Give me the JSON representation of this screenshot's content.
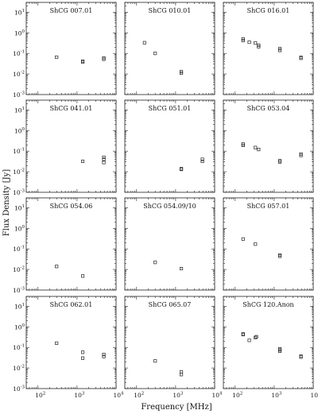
{
  "figure": {
    "ylabel": "Flux Density [Jy]",
    "xlabel": "Frequency [MHz]"
  },
  "chart_data": [
    {
      "type": "scatter",
      "title": "ShCG 007.01",
      "xscale": "log",
      "yscale": "log",
      "xlim": [
        50,
        10000
      ],
      "ylim": [
        0.001,
        30
      ],
      "x": [
        300,
        1400,
        1400,
        4850,
        4850
      ],
      "y": [
        0.065,
        0.042,
        0.038,
        0.06,
        0.052
      ]
    },
    {
      "type": "scatter",
      "title": "ShCG 010.01",
      "xscale": "log",
      "yscale": "log",
      "xlim": [
        50,
        10000
      ],
      "ylim": [
        0.001,
        30
      ],
      "x": [
        160,
        300,
        1400,
        1400
      ],
      "y": [
        0.33,
        0.1,
        0.013,
        0.011
      ]
    },
    {
      "type": "scatter",
      "title": "ShCG 016.01",
      "xscale": "log",
      "yscale": "log",
      "xlim": [
        50,
        10000
      ],
      "ylim": [
        0.001,
        30
      ],
      "x": [
        160,
        160,
        230,
        330,
        400,
        400,
        1400,
        1400,
        4850,
        4850
      ],
      "y": [
        0.5,
        0.42,
        0.35,
        0.32,
        0.25,
        0.21,
        0.17,
        0.14,
        0.065,
        0.058
      ]
    },
    {
      "type": "scatter",
      "title": "ShCG 041.01",
      "xscale": "log",
      "yscale": "log",
      "xlim": [
        50,
        10000
      ],
      "ylim": [
        0.001,
        30
      ],
      "x": [
        1400,
        4850,
        4850,
        4850
      ],
      "y": [
        0.032,
        0.05,
        0.04,
        0.028
      ]
    },
    {
      "type": "scatter",
      "title": "ShCG 051.01",
      "xscale": "log",
      "yscale": "log",
      "xlim": [
        50,
        10000
      ],
      "ylim": [
        0.001,
        30
      ],
      "x": [
        1400,
        1400,
        4850,
        4850
      ],
      "y": [
        0.014,
        0.013,
        0.04,
        0.032
      ]
    },
    {
      "type": "scatter",
      "title": "ShCG 053.04",
      "xscale": "log",
      "yscale": "log",
      "xlim": [
        50,
        10000
      ],
      "ylim": [
        0.001,
        30
      ],
      "x": [
        160,
        160,
        330,
        400,
        1400,
        1400,
        4850,
        4850
      ],
      "y": [
        0.22,
        0.19,
        0.15,
        0.12,
        0.034,
        0.03,
        0.072,
        0.062
      ]
    },
    {
      "type": "scatter",
      "title": "ShCG 054.06",
      "xscale": "log",
      "yscale": "log",
      "xlim": [
        50,
        10000
      ],
      "ylim": [
        0.001,
        30
      ],
      "x": [
        300,
        1400
      ],
      "y": [
        0.014,
        0.0048
      ]
    },
    {
      "type": "scatter",
      "title": "ShCG 054.09/10",
      "xscale": "log",
      "yscale": "log",
      "xlim": [
        50,
        10000
      ],
      "ylim": [
        0.001,
        30
      ],
      "x": [
        300,
        1400
      ],
      "y": [
        0.022,
        0.011
      ]
    },
    {
      "type": "scatter",
      "title": "ShCG 057.01",
      "xscale": "log",
      "yscale": "log",
      "xlim": [
        50,
        10000
      ],
      "ylim": [
        0.001,
        30
      ],
      "x": [
        160,
        330,
        1400,
        1400
      ],
      "y": [
        0.3,
        0.17,
        0.05,
        0.044
      ]
    },
    {
      "type": "scatter",
      "title": "ShCG 062.01",
      "xscale": "log",
      "yscale": "log",
      "xlim": [
        50,
        10000
      ],
      "ylim": [
        0.001,
        30
      ],
      "x": [
        300,
        1400,
        1400,
        4850,
        4850
      ],
      "y": [
        0.16,
        0.058,
        0.03,
        0.045,
        0.036
      ]
    },
    {
      "type": "scatter",
      "title": "ShCG 065.07",
      "xscale": "log",
      "yscale": "log",
      "xlim": [
        50,
        10000
      ],
      "ylim": [
        0.001,
        30
      ],
      "x": [
        300,
        1400,
        1400
      ],
      "y": [
        0.022,
        0.0065,
        0.0048
      ]
    },
    {
      "type": "scatter",
      "title": "ShCG 120.Anon",
      "xscale": "log",
      "yscale": "log",
      "xlim": [
        50,
        10000
      ],
      "ylim": [
        0.001,
        30
      ],
      "x": [
        160,
        160,
        230,
        330,
        350,
        1400,
        1400,
        1400,
        4850,
        4850
      ],
      "y": [
        0.45,
        0.42,
        0.22,
        0.3,
        0.33,
        0.085,
        0.075,
        0.065,
        0.038,
        0.034
      ]
    }
  ]
}
